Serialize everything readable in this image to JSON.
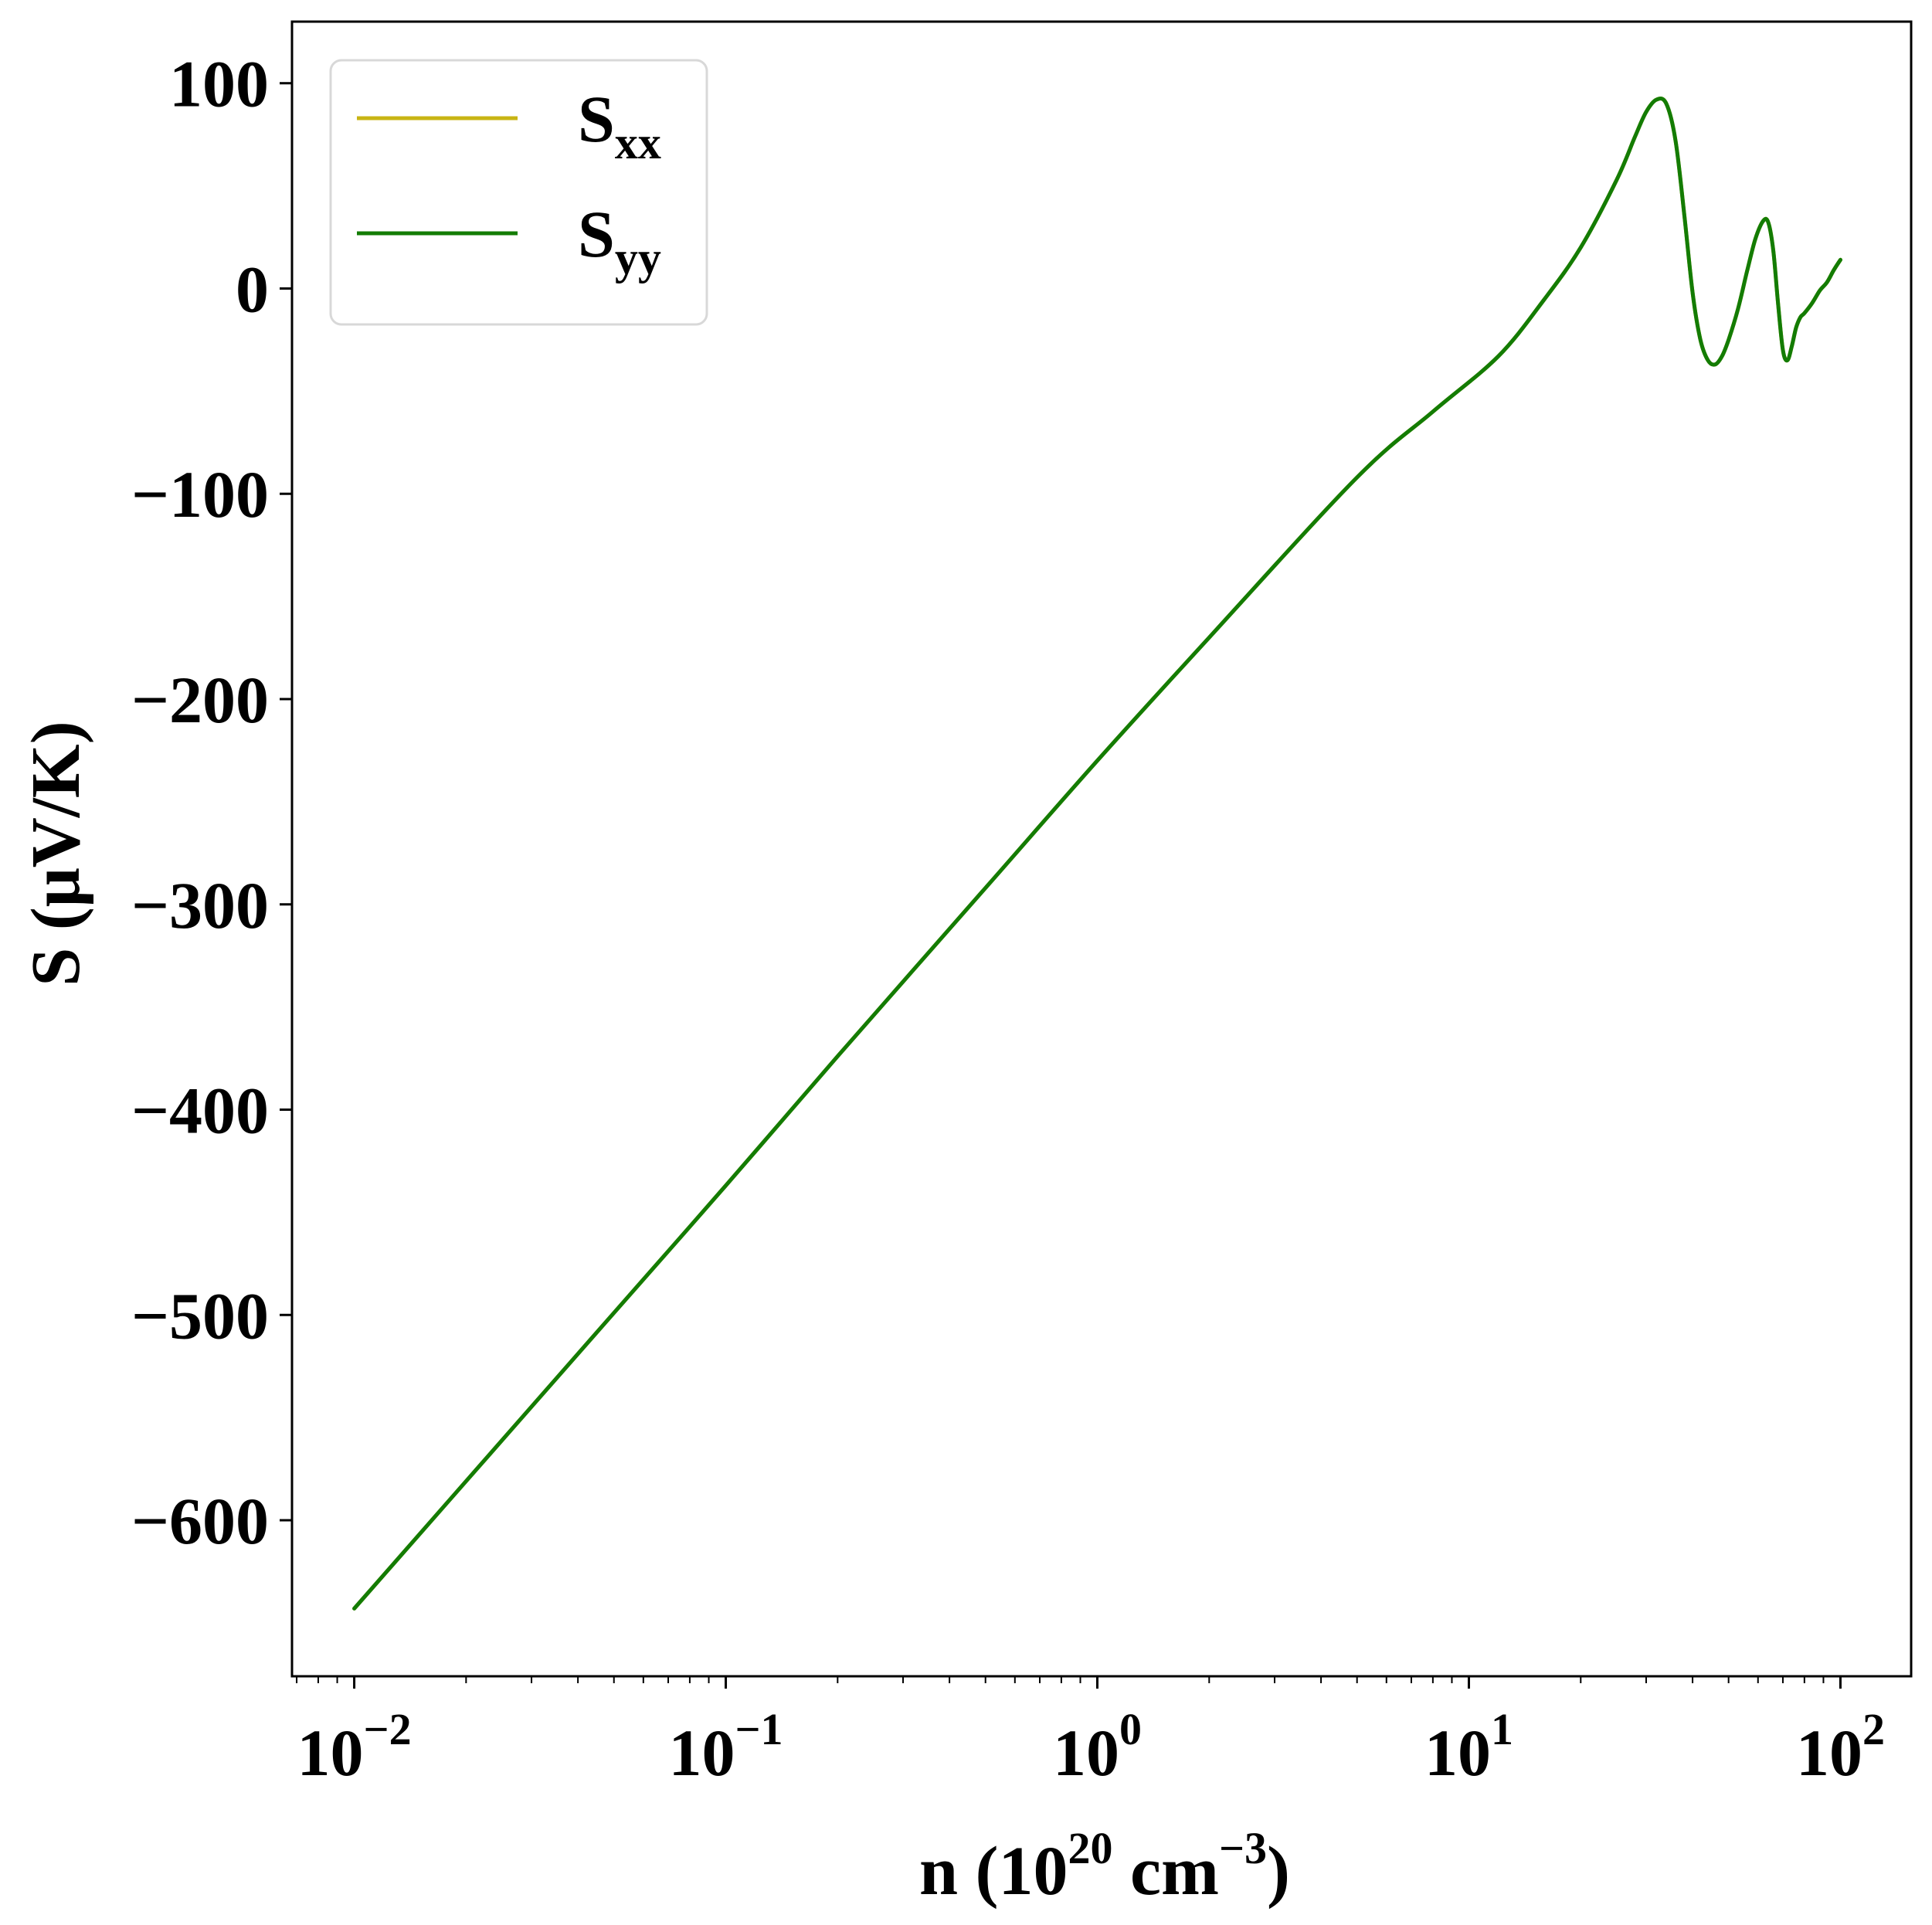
{
  "chart_data": {
    "type": "line",
    "xscale": "log",
    "xlim": [
      0.0068,
      155
    ],
    "ylim": [
      -676,
      130
    ],
    "xlabel": "n (10^20 cm^-3)",
    "xlabel_parts": {
      "pre": "n (10",
      "sup1": "20",
      "mid": " cm",
      "sup2": "−3",
      "post": ")"
    },
    "ylabel": "S (μV/K)",
    "grid": false,
    "legend_position": "top-left",
    "x_ticks": [
      {
        "value": 0.01,
        "base": "10",
        "exp": "−2"
      },
      {
        "value": 0.1,
        "base": "10",
        "exp": "−1"
      },
      {
        "value": 1,
        "base": "10",
        "exp": "0"
      },
      {
        "value": 10,
        "base": "10",
        "exp": "1"
      },
      {
        "value": 100,
        "base": "10",
        "exp": "2"
      }
    ],
    "y_ticks": [
      {
        "value": 100,
        "label": "100"
      },
      {
        "value": 0,
        "label": "0"
      },
      {
        "value": -100,
        "label": "−100"
      },
      {
        "value": -200,
        "label": "−200"
      },
      {
        "value": -300,
        "label": "−300"
      },
      {
        "value": -400,
        "label": "−400"
      },
      {
        "value": -500,
        "label": "−500"
      },
      {
        "value": -600,
        "label": "−600"
      }
    ],
    "x": [
      0.01,
      0.02,
      0.05,
      0.1,
      0.2,
      0.5,
      1,
      2,
      5,
      8,
      12,
      16,
      20,
      25,
      28,
      30,
      32,
      34,
      36,
      38,
      40,
      42,
      44,
      46,
      48,
      50,
      53,
      56,
      59,
      62,
      64,
      66,
      68,
      70,
      72,
      74,
      76,
      78,
      80,
      84,
      88,
      92,
      96,
      100
    ],
    "series": [
      {
        "name": "S",
        "sub": "xx",
        "color": "#c8b414",
        "values": [
          -643,
          -581,
          -499,
          -437,
          -374,
          -292,
          -230,
          -170,
          -92,
          -60,
          -33,
          -5,
          20,
          53,
          74,
          86,
          92,
          90,
          72,
          36,
          -2,
          -25,
          -35,
          -37,
          -33,
          -25,
          -10,
          8,
          24,
          33,
          32,
          18,
          -8,
          -30,
          -35,
          -28,
          -19,
          -14,
          -12,
          -7,
          -1,
          3,
          9,
          14
        ]
      },
      {
        "name": "S",
        "sub": "yy",
        "color": "#137c04",
        "values": [
          -643,
          -581,
          -499,
          -437,
          -374,
          -292,
          -230,
          -170,
          -92,
          -60,
          -33,
          -5,
          20,
          53,
          74,
          86,
          92,
          90,
          72,
          36,
          -2,
          -25,
          -35,
          -37,
          -33,
          -25,
          -10,
          8,
          24,
          33,
          32,
          18,
          -8,
          -30,
          -35,
          -28,
          -19,
          -14,
          -12,
          -7,
          -1,
          3,
          9,
          14
        ]
      }
    ]
  }
}
